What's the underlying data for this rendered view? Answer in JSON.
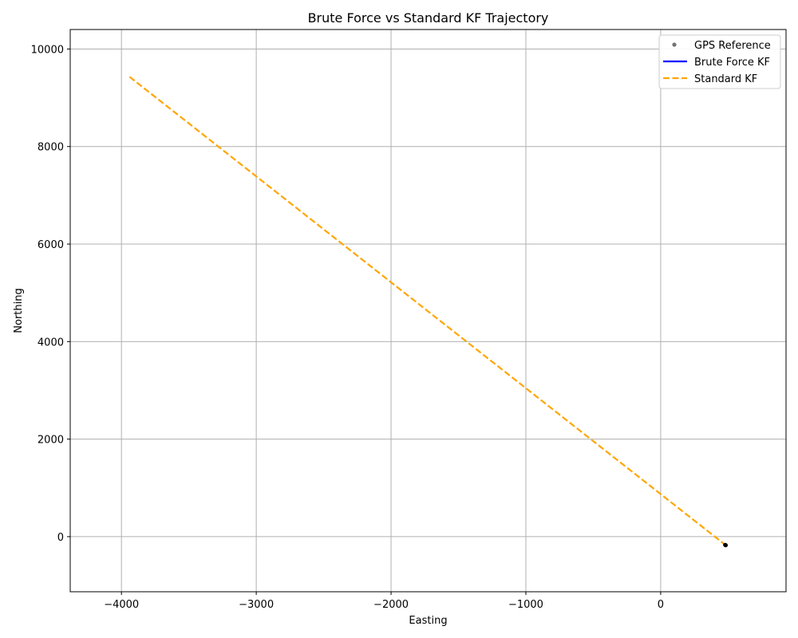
{
  "chart_data": {
    "type": "line",
    "title": "Brute Force vs Standard KF Trajectory",
    "xlabel": "Easting",
    "ylabel": "Northing",
    "xlim": [
      -4380,
      930
    ],
    "ylim": [
      -1130,
      10400
    ],
    "xticks": [
      -4000,
      -3000,
      -2000,
      -1000,
      0
    ],
    "yticks": [
      0,
      2000,
      4000,
      6000,
      8000,
      10000
    ],
    "grid": true,
    "legend_position": "top-right",
    "series": [
      {
        "name": "GPS Reference",
        "kind": "scatter",
        "color": "#000000",
        "x": [
          478,
          481,
          483
        ],
        "y": [
          -168,
          -172,
          -176
        ]
      },
      {
        "name": "Brute Force KF",
        "kind": "line",
        "color": "#0000ff",
        "x": [
          480,
          482
        ],
        "y": [
          -170,
          -174
        ]
      },
      {
        "name": "Standard KF",
        "kind": "dashed-line",
        "color": "#ffa500",
        "x": [
          -3940,
          480
        ],
        "y": [
          9430,
          -170
        ]
      }
    ]
  }
}
